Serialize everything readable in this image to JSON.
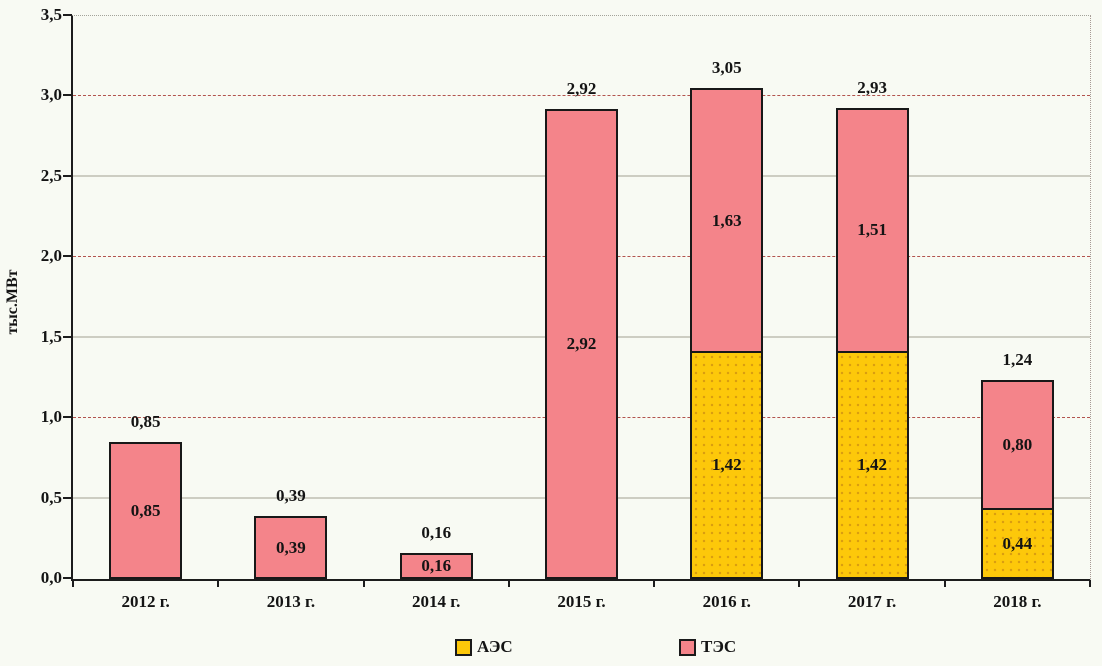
{
  "chart_data": {
    "type": "bar",
    "stacked": true,
    "title": "",
    "ylabel": "тыс.МВт",
    "xlabel": "",
    "ylim": [
      0,
      3.5
    ],
    "ytick_step": 0.5,
    "yticks": [
      "0,0",
      "0,5",
      "1,0",
      "1,5",
      "2,0",
      "2,5",
      "3,0",
      "3,5"
    ],
    "grid": true,
    "legend_position": "bottom",
    "categories": [
      "2012 г.",
      "2013 г.",
      "2014 г.",
      "2015 г.",
      "2016 г.",
      "2017 г.",
      "2018 г."
    ],
    "series": [
      {
        "name": "АЭС",
        "color": "#fdc80a",
        "values": [
          0,
          0,
          0,
          0,
          1.42,
          1.42,
          0.44
        ],
        "labels": [
          "",
          "",
          "",
          "",
          "1,42",
          "1,42",
          "0,44"
        ]
      },
      {
        "name": "ТЭС",
        "color": "#f4848a",
        "values": [
          0.85,
          0.39,
          0.16,
          2.92,
          1.63,
          1.51,
          0.8
        ],
        "labels": [
          "0,85",
          "0,39",
          "0,16",
          "2,92",
          "1,63",
          "1,51",
          "0,80"
        ]
      }
    ],
    "totals": [
      0.85,
      0.39,
      0.16,
      2.92,
      3.05,
      2.93,
      1.24
    ],
    "total_labels": [
      "0,85",
      "0,39",
      "0,16",
      "2,92",
      "3,05",
      "2,93",
      "1,24"
    ],
    "legend": [
      {
        "label": "АЭС",
        "color": "#fdc80a"
      },
      {
        "label": "ТЭС",
        "color": "#f4848a"
      }
    ],
    "colors": {
      "grid_half": "#cdcdc2",
      "grid_whole": "#b2544e",
      "axis": "#1c1c1c",
      "background": "#f8faf3",
      "bar_border": "#181818"
    }
  }
}
